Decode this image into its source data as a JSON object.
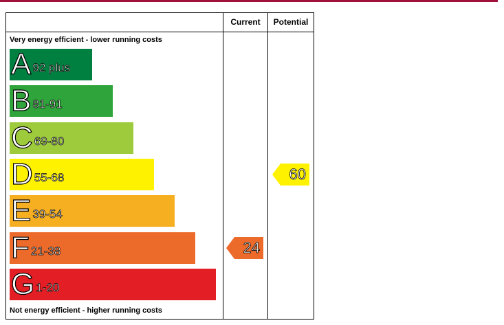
{
  "headers": {
    "current": "Current",
    "potential": "Potential"
  },
  "top_caption": "Very energy efficient - lower running costs",
  "bottom_caption": "Not energy efficient - higher running costs",
  "bands": [
    {
      "letter": "A",
      "range": "92 plus",
      "color": "#008040"
    },
    {
      "letter": "B",
      "range": "81-91",
      "color": "#2ea43a"
    },
    {
      "letter": "C",
      "range": "69-80",
      "color": "#9dcb3c"
    },
    {
      "letter": "D",
      "range": "55-68",
      "color": "#fff200"
    },
    {
      "letter": "E",
      "range": "39-54",
      "color": "#f7af22"
    },
    {
      "letter": "F",
      "range": "21-38",
      "color": "#ec6a2a"
    },
    {
      "letter": "G",
      "range": "1-20",
      "color": "#e31e24"
    }
  ],
  "current": {
    "value": "24",
    "band": "F",
    "color": "#ec6a2a"
  },
  "potential": {
    "value": "60",
    "band": "D",
    "color": "#fff200"
  },
  "accent_color": "#a0103a"
}
